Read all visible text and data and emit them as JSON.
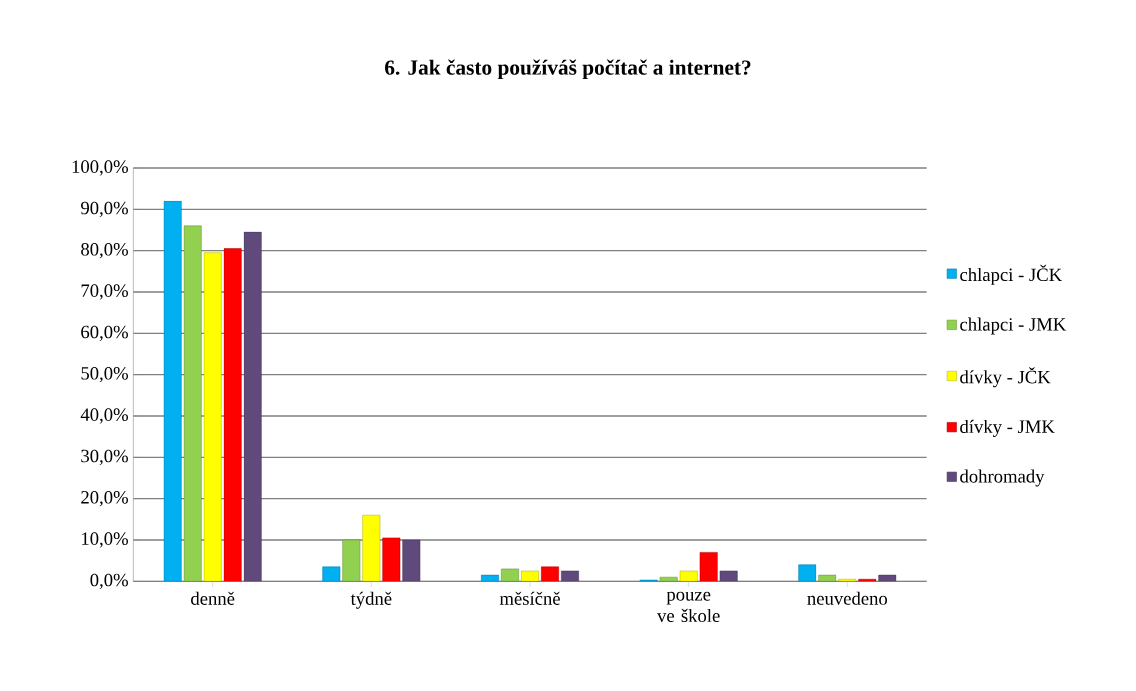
{
  "chart_data": {
    "type": "bar",
    "title": "6. Jak často používáš počítač a internet?",
    "categories": [
      "denně",
      "týdně",
      "měsíčně",
      "pouze ve škole",
      "neuvedeno"
    ],
    "series": [
      {
        "name": "chlapci - JČK",
        "color": "#00b0f0",
        "values": [
          92,
          3.5,
          1.5,
          0.3,
          4
        ]
      },
      {
        "name": "chlapci - JMK",
        "color": "#92d050",
        "values": [
          86,
          10,
          3,
          1,
          1.5
        ]
      },
      {
        "name": "dívky - JČK",
        "color": "#ffff00",
        "values": [
          79.5,
          16,
          2.5,
          2.5,
          0.5
        ]
      },
      {
        "name": "dívky - JMK",
        "color": "#ff0000",
        "values": [
          80.5,
          10.5,
          3.5,
          7,
          0.5
        ]
      },
      {
        "name": "dohromady",
        "color": "#604a7b",
        "values": [
          84.5,
          10,
          2.5,
          2.5,
          1.5
        ]
      }
    ],
    "ylim": [
      0,
      100
    ],
    "yticks": [
      {
        "value": 0,
        "label": "0,0%"
      },
      {
        "value": 10,
        "label": "10,0%"
      },
      {
        "value": 20,
        "label": "20,0%"
      },
      {
        "value": 30,
        "label": "30,0%"
      },
      {
        "value": 40,
        "label": "40,0%"
      },
      {
        "value": 50,
        "label": "50,0%"
      },
      {
        "value": 60,
        "label": "60,0%"
      },
      {
        "value": 70,
        "label": "70,0%"
      },
      {
        "value": 80,
        "label": "80,0%"
      },
      {
        "value": 90,
        "label": "90,0%"
      },
      {
        "value": 100,
        "label": "100,0%"
      }
    ],
    "grid": "y",
    "legend": "right"
  }
}
